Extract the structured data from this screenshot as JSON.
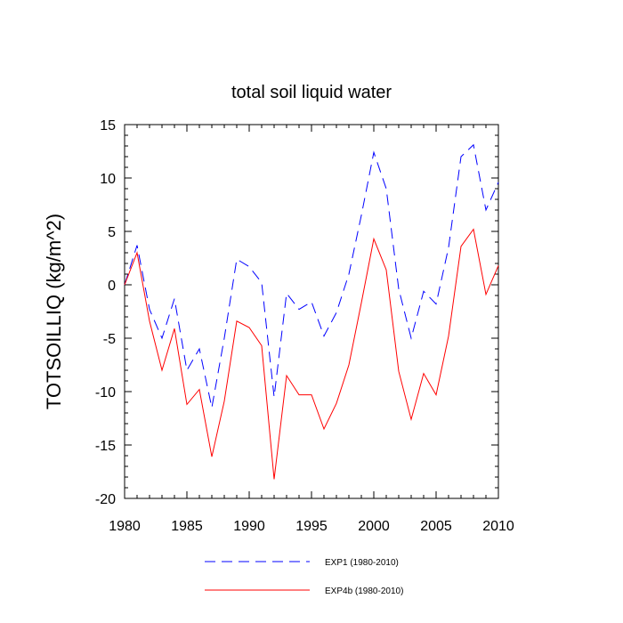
{
  "chart_data": {
    "type": "line",
    "title": "total soil liquid water",
    "xlabel": "",
    "ylabel": "TOTSOILLIQ  (kg/m^2)",
    "xlim": [
      1980,
      2010
    ],
    "ylim": [
      -20,
      15
    ],
    "x_ticks": [
      1980,
      1985,
      1990,
      1995,
      2000,
      2005,
      2010
    ],
    "x_tick_labels": [
      "1980",
      "1985",
      "1990",
      "1995",
      "2000",
      "2005",
      "2010"
    ],
    "y_ticks": [
      15,
      10,
      5,
      0,
      -5,
      -10,
      -15,
      -20
    ],
    "y_tick_labels": [
      "15",
      "10",
      "5",
      "0",
      "-5",
      "-10",
      "-15",
      "-20"
    ],
    "grid": false,
    "legend_position": "bottom",
    "x": [
      1980,
      1981,
      1982,
      1983,
      1984,
      1985,
      1986,
      1987,
      1988,
      1989,
      1990,
      1991,
      1992,
      1993,
      1994,
      1995,
      1996,
      1997,
      1998,
      1999,
      2000,
      2001,
      2002,
      2003,
      2004,
      2005,
      2006,
      2007,
      2008,
      2009,
      2010
    ],
    "series": [
      {
        "name": "EXP1 (1980-2010)",
        "color": "#0000ff",
        "dash": "dashed",
        "values": [
          0.0,
          3.7,
          -2.3,
          -5.0,
          -1.3,
          -8.0,
          -6.0,
          -11.5,
          -5.0,
          2.4,
          1.7,
          0.2,
          -10.5,
          -0.8,
          -2.3,
          -1.6,
          -4.8,
          -2.6,
          1.0,
          6.5,
          12.4,
          9.0,
          -0.4,
          -5.0,
          -0.6,
          -1.8,
          3.5,
          12.0,
          13.1,
          7.0,
          9.6
        ]
      },
      {
        "name": "EXP4b (1980-2010)",
        "color": "#ff0000",
        "dash": "solid",
        "values": [
          0.0,
          3.0,
          -3.4,
          -8.0,
          -4.1,
          -11.2,
          -9.8,
          -16.1,
          -10.9,
          -3.4,
          -4.0,
          -5.7,
          -18.2,
          -8.5,
          -10.3,
          -10.3,
          -13.5,
          -11.1,
          -7.5,
          -1.7,
          4.3,
          1.4,
          -8.1,
          -12.6,
          -8.3,
          -10.3,
          -4.8,
          3.6,
          5.2,
          -0.9,
          1.8
        ]
      }
    ]
  }
}
